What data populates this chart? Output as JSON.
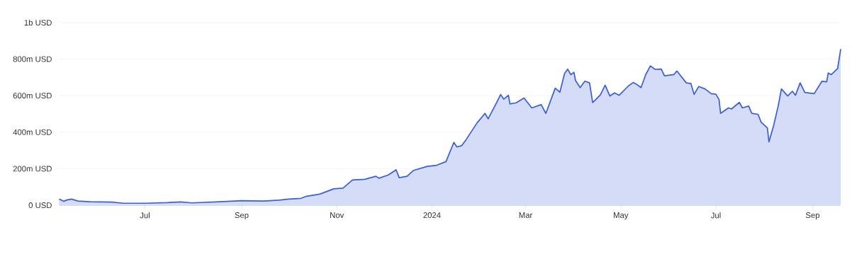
{
  "chart_data": {
    "type": "area",
    "color": "#3a5fd9",
    "x": [
      "2023-05-07",
      "2023-05-10",
      "2023-05-12",
      "2023-05-15",
      "2023-05-19",
      "2023-05-27",
      "2023-06-10",
      "2023-06-17",
      "2023-07-01",
      "2023-07-15",
      "2023-07-24",
      "2023-07-31",
      "2023-08-18",
      "2023-09-01",
      "2023-09-15",
      "2023-09-25",
      "2023-10-01",
      "2023-10-09",
      "2023-10-12",
      "2023-10-21",
      "2023-10-30",
      "2023-11-05",
      "2023-11-11",
      "2023-11-19",
      "2023-11-26",
      "2023-11-28",
      "2023-12-04",
      "2023-12-09",
      "2023-12-11",
      "2023-12-16",
      "2023-12-20",
      "2023-12-29",
      "2024-01-04",
      "2024-01-10",
      "2024-01-15",
      "2024-01-17",
      "2024-01-20",
      "2024-01-23",
      "2024-01-30",
      "2024-02-04",
      "2024-02-06",
      "2024-02-11",
      "2024-02-14",
      "2024-02-16",
      "2024-02-19",
      "2024-02-20",
      "2024-02-24",
      "2024-02-29",
      "2024-03-05",
      "2024-03-11",
      "2024-03-14",
      "2024-03-20",
      "2024-03-23",
      "2024-03-26",
      "2024-03-28",
      "2024-03-30",
      "2024-04-01",
      "2024-04-02",
      "2024-04-05",
      "2024-04-08",
      "2024-04-11",
      "2024-04-13",
      "2024-04-15",
      "2024-04-18",
      "2024-04-21",
      "2024-04-24",
      "2024-04-27",
      "2024-04-30",
      "2024-05-06",
      "2024-05-09",
      "2024-05-11",
      "2024-05-14",
      "2024-05-17",
      "2024-05-20",
      "2024-05-23",
      "2024-05-27",
      "2024-05-29",
      "2024-06-04",
      "2024-06-06",
      "2024-06-12",
      "2024-06-15",
      "2024-06-17",
      "2024-06-20",
      "2024-06-24",
      "2024-06-28",
      "2024-07-01",
      "2024-07-03",
      "2024-07-04",
      "2024-07-09",
      "2024-07-11",
      "2024-07-16",
      "2024-07-18",
      "2024-07-22",
      "2024-07-24",
      "2024-07-28",
      "2024-07-30",
      "2024-08-03",
      "2024-08-04",
      "2024-08-07",
      "2024-08-10",
      "2024-08-12",
      "2024-08-16",
      "2024-08-19",
      "2024-08-21",
      "2024-08-24",
      "2024-08-27",
      "2024-09-02",
      "2024-09-07",
      "2024-09-10",
      "2024-09-11",
      "2024-09-13",
      "2024-09-17",
      "2024-09-19"
    ],
    "values": [
      34000000.0,
      22000000.0,
      29000000.0,
      34000000.0,
      23000000.0,
      19000000.0,
      17000000.0,
      11000000.0,
      11000000.0,
      14000000.0,
      18000000.0,
      13000000.0,
      19000000.0,
      25000000.0,
      23000000.0,
      28000000.0,
      34000000.0,
      38000000.0,
      48000000.0,
      61000000.0,
      90000000.0,
      94000000.0,
      138000000.0,
      142000000.0,
      159000000.0,
      148000000.0,
      166000000.0,
      194000000.0,
      151000000.0,
      159000000.0,
      190000000.0,
      213000000.0,
      219000000.0,
      239000000.0,
      344000000.0,
      319000000.0,
      326000000.0,
      361000000.0,
      452000000.0,
      503000000.0,
      473000000.0,
      555000000.0,
      606000000.0,
      581000000.0,
      602000000.0,
      555000000.0,
      561000000.0,
      587000000.0,
      533000000.0,
      551000000.0,
      503000000.0,
      641000000.0,
      619000000.0,
      722000000.0,
      745000000.0,
      715000000.0,
      728000000.0,
      683000000.0,
      644000000.0,
      679000000.0,
      670000000.0,
      562000000.0,
      579000000.0,
      605000000.0,
      657000000.0,
      598000000.0,
      615000000.0,
      602000000.0,
      654000000.0,
      672000000.0,
      663000000.0,
      644000000.0,
      715000000.0,
      763000000.0,
      744000000.0,
      745000000.0,
      709000000.0,
      715000000.0,
      735000000.0,
      670000000.0,
      666000000.0,
      607000000.0,
      650000000.0,
      637000000.0,
      611000000.0,
      608000000.0,
      579000000.0,
      503000000.0,
      533000000.0,
      527000000.0,
      563000000.0,
      533000000.0,
      543000000.0,
      503000000.0,
      498000000.0,
      455000000.0,
      423000000.0,
      347000000.0,
      436000000.0,
      546000000.0,
      637000000.0,
      598000000.0,
      624000000.0,
      602000000.0,
      670000000.0,
      618000000.0,
      611000000.0,
      679000000.0,
      676000000.0,
      724000000.0,
      715000000.0,
      748000000.0,
      855000000.0
    ],
    "xlim": [
      "2023-05-07",
      "2024-09-19"
    ],
    "ylim": [
      0,
      1000000000
    ],
    "xticks": [
      {
        "value": "2023-07-01",
        "label": "Jul"
      },
      {
        "value": "2023-09-01",
        "label": "Sep"
      },
      {
        "value": "2023-11-01",
        "label": "Nov"
      },
      {
        "value": "2024-01-01",
        "label": "2024"
      },
      {
        "value": "2024-03-01",
        "label": "Mar"
      },
      {
        "value": "2024-05-01",
        "label": "May"
      },
      {
        "value": "2024-07-01",
        "label": "Jul"
      },
      {
        "value": "2024-09-01",
        "label": "Sep"
      }
    ],
    "yticks": [
      {
        "value": 0,
        "label": "0 USD"
      },
      {
        "value": 200000000,
        "label": "200m USD"
      },
      {
        "value": 400000000,
        "label": "400m USD"
      },
      {
        "value": 600000000,
        "label": "600m USD"
      },
      {
        "value": 800000000,
        "label": "800m USD"
      },
      {
        "value": 1000000000,
        "label": "1b USD"
      }
    ],
    "grid": "y"
  }
}
